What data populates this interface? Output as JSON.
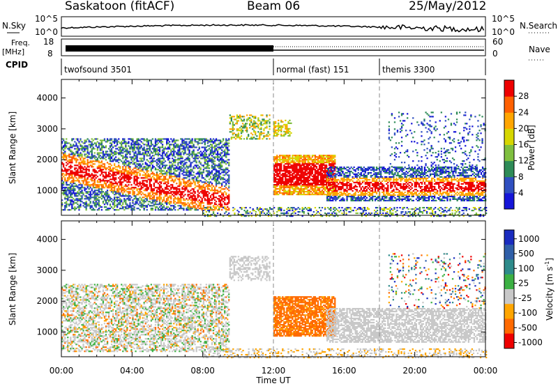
{
  "header": {
    "radar": "Saskatoon (fitACF)",
    "beam": "Beam 06",
    "date": "25/May/2012"
  },
  "panels": {
    "nsky_label": "N.Sky",
    "nsearch_label": "N.Search",
    "freq_label_1": "Freq.",
    "freq_label_2": "[MHz]",
    "nave_label": "Nave",
    "cpid_label": "CPID",
    "nsky_ticks": [
      "10^5",
      "10^0"
    ],
    "nsearch_ticks": [
      "10^5",
      "10^0"
    ],
    "freq_ticks": [
      "18",
      "8"
    ],
    "nave_ticks": [
      "60",
      "0"
    ]
  },
  "chart_data": [
    {
      "type": "table",
      "title": "CPID",
      "segments": [
        {
          "label": "twofsound 3501",
          "start_hour": 0,
          "end_hour": 12
        },
        {
          "label": "normal (fast) 151",
          "start_hour": 12,
          "end_hour": 18
        },
        {
          "label": "themis 3300",
          "start_hour": 18,
          "end_hour": 24
        }
      ]
    },
    {
      "type": "heatmap",
      "title": "Power",
      "ylabel": "Slant Range [km]",
      "xlabel": "Time UT",
      "x_ticks": [
        "00:00",
        "04:00",
        "08:00",
        "12:00",
        "16:00",
        "20:00",
        "00:00"
      ],
      "y_ticks": [
        "1000",
        "2000",
        "3000",
        "4000"
      ],
      "ylim": [
        200,
        4600
      ],
      "colorbar": {
        "label": "Power [dB]",
        "ticks": [
          "4",
          "8",
          "12",
          "16",
          "20",
          "24",
          "28"
        ],
        "colors": [
          "#1515d8",
          "#2f4fc0",
          "#2e8b57",
          "#7fbf3f",
          "#d6d600",
          "#ffa500",
          "#ff6000",
          "#ee0000"
        ]
      }
    },
    {
      "type": "heatmap",
      "title": "Velocity",
      "ylabel": "Slant Range [km]",
      "xlabel": "Time UT",
      "x_ticks": [
        "00:00",
        "04:00",
        "08:00",
        "12:00",
        "16:00",
        "20:00",
        "00:00"
      ],
      "y_ticks": [
        "1000",
        "2000",
        "3000",
        "4000"
      ],
      "ylim": [
        200,
        4600
      ],
      "colorbar": {
        "label_main": "Velocity [m s",
        "label_sup": "-1",
        "label_end": "]",
        "ticks": [
          "1000",
          "500",
          "100",
          "25",
          "-25",
          "-100",
          "-500",
          "-1000"
        ],
        "colors": [
          "#1a2cbf",
          "#2f5fa8",
          "#2e8b8b",
          "#3cb043",
          "#c8c8c8",
          "#ffa500",
          "#ff6a00",
          "#ee0000"
        ]
      }
    }
  ],
  "xlabel": "Time UT"
}
